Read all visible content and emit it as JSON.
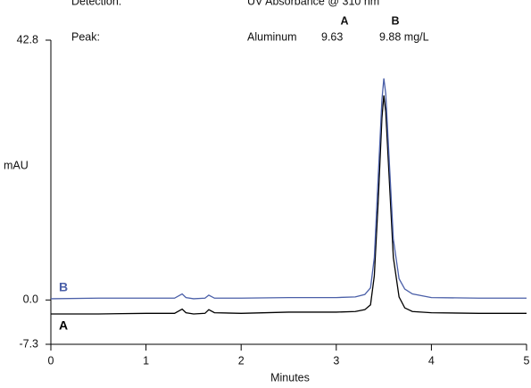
{
  "chart_data": {
    "type": "line",
    "header": {
      "detection_label": "Detection:",
      "detection_value": "UV Absorbance @ 310 nm",
      "col_a": "A",
      "col_b": "B",
      "peak_label": "Peak:",
      "peak_name": "Aluminum",
      "peak_a": "9.63",
      "peak_b": "9.88 mg/L"
    },
    "ylabel": "mAU",
    "xlabel": "Minutes",
    "x": [
      0,
      0.5,
      1,
      1.3,
      1.38,
      1.42,
      1.5,
      1.62,
      1.66,
      1.72,
      2,
      2.5,
      3,
      3.2,
      3.3,
      3.36,
      3.4,
      3.44,
      3.48,
      3.5,
      3.52,
      3.56,
      3.6,
      3.66,
      3.72,
      3.8,
      4,
      4.5,
      5
    ],
    "series": [
      {
        "name": "A",
        "color": "#000000",
        "values": [
          -2.3,
          -2.3,
          -2.2,
          -2.2,
          -1.5,
          -2.1,
          -2.3,
          -2.2,
          -1.6,
          -2.1,
          -2.2,
          -2.0,
          -2.0,
          -1.9,
          -1.6,
          -0.8,
          4,
          16,
          30,
          33.7,
          31,
          19,
          7,
          0.5,
          -1.3,
          -1.9,
          -2.1,
          -2.2,
          -2.2
        ]
      },
      {
        "name": "B",
        "color": "#4a5fa8",
        "values": [
          0.2,
          0.3,
          0.3,
          0.3,
          1.0,
          0.4,
          0.2,
          0.3,
          0.8,
          0.3,
          0.3,
          0.4,
          0.4,
          0.5,
          0.9,
          2,
          7,
          20,
          33,
          36.5,
          34,
          22,
          10,
          3.5,
          1.8,
          1,
          0.4,
          0.3,
          0.3
        ]
      }
    ],
    "xlim": [
      0,
      5
    ],
    "xticks": [
      0,
      1,
      2,
      3,
      4,
      5
    ],
    "ylim": [
      -7.3,
      42.8
    ],
    "yticks": [
      -7.3,
      {
        "value": 0,
        "label": "0.0"
      },
      42.8
    ]
  }
}
